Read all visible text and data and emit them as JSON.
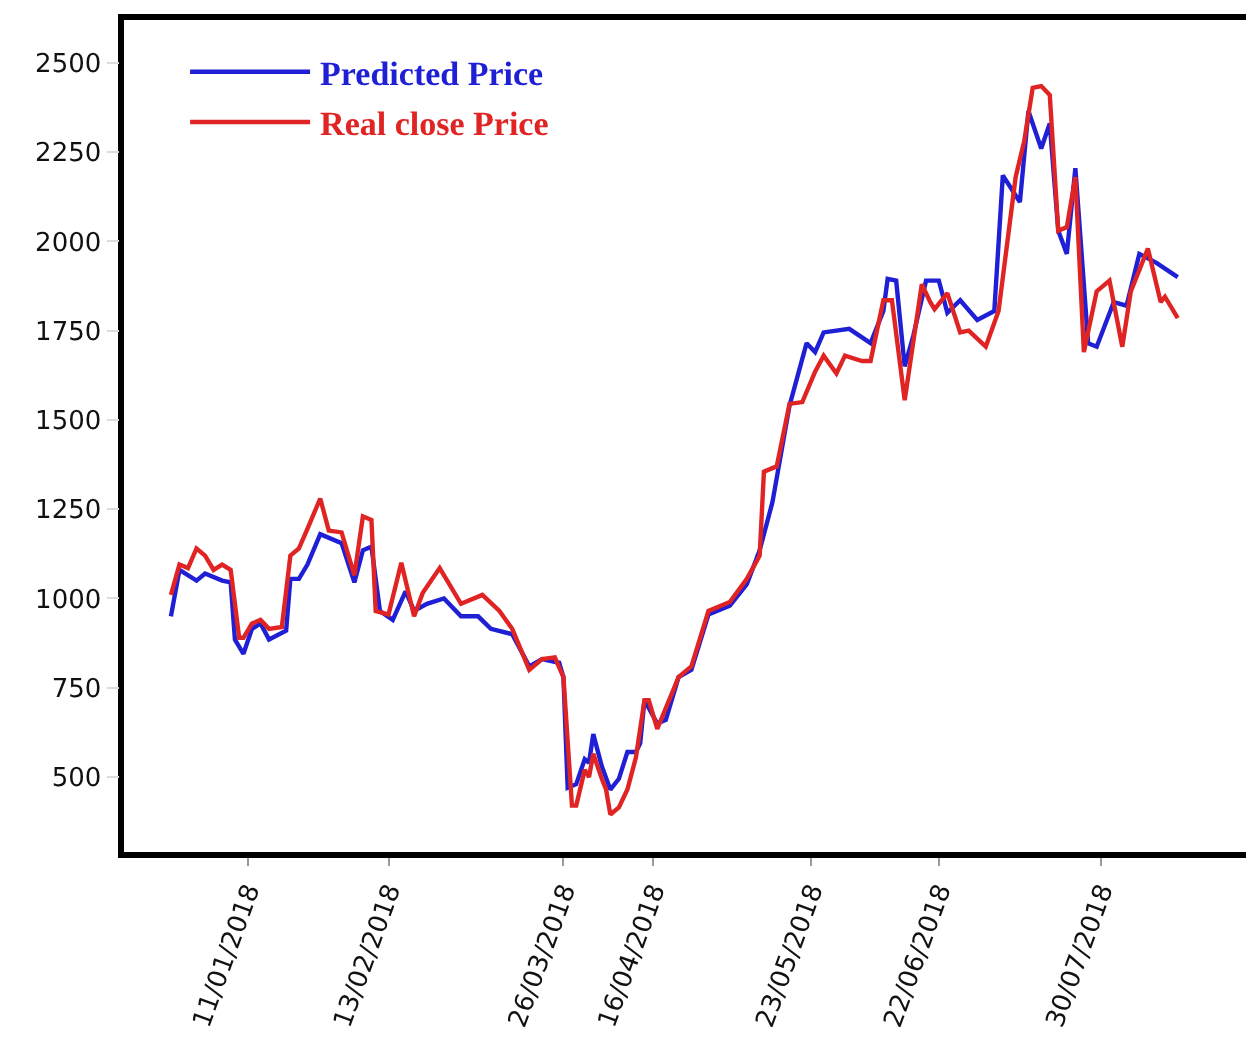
{
  "chart_data": {
    "type": "line",
    "legend": "top left",
    "grid": false,
    "marker": "none",
    "line_style": "solid",
    "xlim": [
      "2017-12-13",
      "2018-09-02"
    ],
    "ylim": [
      290,
      2620
    ],
    "xticks": [
      {
        "value": "2018-01-11",
        "label": "11/01/2018"
      },
      {
        "value": "2018-02-13",
        "label": "13/02/2018"
      },
      {
        "value": "2018-03-26",
        "label": "26/03/2018"
      },
      {
        "value": "2018-04-16",
        "label": "16/04/2018"
      },
      {
        "value": "2018-05-23",
        "label": "23/05/2018"
      },
      {
        "value": "2018-06-22",
        "label": "22/06/2018"
      },
      {
        "value": "2018-07-30",
        "label": "30/07/2018"
      }
    ],
    "yticks": [
      500,
      750,
      1000,
      1250,
      1500,
      1750,
      2000,
      2250,
      2500
    ],
    "series": [
      {
        "name": "Predicted Price",
        "color": "#1f1fd6",
        "x": [
          "2017-12-24",
          "2017-12-26",
          "2017-12-30",
          "2018-01-01",
          "2018-01-05",
          "2018-01-07",
          "2018-01-08",
          "2018-01-10",
          "2018-01-12",
          "2018-01-14",
          "2018-01-16",
          "2018-01-20",
          "2018-01-21",
          "2018-01-23",
          "2018-01-25",
          "2018-01-28",
          "2018-02-02",
          "2018-02-05",
          "2018-02-07",
          "2018-02-09",
          "2018-02-11",
          "2018-02-14",
          "2018-02-17",
          "2018-02-19",
          "2018-02-22",
          "2018-02-26",
          "2018-03-02",
          "2018-03-06",
          "2018-03-09",
          "2018-03-14",
          "2018-03-18",
          "2018-03-21",
          "2018-03-25",
          "2018-03-26",
          "2018-03-27",
          "2018-03-29",
          "2018-03-31",
          "2018-04-01",
          "2018-04-02",
          "2018-04-04",
          "2018-04-06",
          "2018-04-08",
          "2018-04-10",
          "2018-04-12",
          "2018-04-13",
          "2018-04-14",
          "2018-04-17",
          "2018-04-19",
          "2018-04-22",
          "2018-04-25",
          "2018-04-29",
          "2018-05-04",
          "2018-05-08",
          "2018-05-11",
          "2018-05-14",
          "2018-05-18",
          "2018-05-22",
          "2018-05-24",
          "2018-05-26",
          "2018-06-01",
          "2018-06-06",
          "2018-06-09",
          "2018-06-10",
          "2018-06-12",
          "2018-06-14",
          "2018-06-16",
          "2018-06-19",
          "2018-06-22",
          "2018-06-24",
          "2018-06-27",
          "2018-07-01",
          "2018-07-05",
          "2018-07-07",
          "2018-07-11",
          "2018-07-13",
          "2018-07-16",
          "2018-07-18",
          "2018-07-20",
          "2018-07-22",
          "2018-07-24",
          "2018-07-27",
          "2018-07-29",
          "2018-08-02",
          "2018-08-05",
          "2018-08-08",
          "2018-08-12",
          "2018-08-17"
        ],
        "values": [
          950,
          1080,
          1050,
          1070,
          1050,
          1045,
          885,
          845,
          915,
          930,
          885,
          910,
          1055,
          1055,
          1095,
          1180,
          1155,
          1045,
          1135,
          1145,
          965,
          940,
          1020,
          965,
          985,
          1000,
          950,
          950,
          915,
          900,
          810,
          830,
          820,
          780,
          470,
          480,
          550,
          540,
          620,
          530,
          465,
          495,
          570,
          570,
          595,
          715,
          650,
          660,
          780,
          800,
          955,
          980,
          1040,
          1135,
          1270,
          1540,
          1715,
          1690,
          1745,
          1755,
          1715,
          1805,
          1895,
          1890,
          1650,
          1735,
          1890,
          1890,
          1800,
          1835,
          1780,
          1805,
          2185,
          2110,
          2365,
          2260,
          2330,
          2030,
          1965,
          2205,
          1715,
          1705,
          1830,
          1820,
          1965,
          1940,
          1900
        ]
      },
      {
        "name": "Real close Price",
        "color": "#e02424",
        "x": [
          "2017-12-24",
          "2017-12-26",
          "2017-12-28",
          "2017-12-30",
          "2018-01-01",
          "2018-01-03",
          "2018-01-05",
          "2018-01-07",
          "2018-01-09",
          "2018-01-10",
          "2018-01-12",
          "2018-01-14",
          "2018-01-16",
          "2018-01-19",
          "2018-01-21",
          "2018-01-23",
          "2018-01-25",
          "2018-01-28",
          "2018-01-30",
          "2018-02-02",
          "2018-02-05",
          "2018-02-07",
          "2018-02-09",
          "2018-02-10",
          "2018-02-13",
          "2018-02-16",
          "2018-02-19",
          "2018-02-21",
          "2018-02-25",
          "2018-03-02",
          "2018-03-07",
          "2018-03-11",
          "2018-03-14",
          "2018-03-18",
          "2018-03-21",
          "2018-03-24",
          "2018-03-26",
          "2018-03-28",
          "2018-03-29",
          "2018-03-31",
          "2018-04-01",
          "2018-04-02",
          "2018-04-04",
          "2018-04-05",
          "2018-04-06",
          "2018-04-08",
          "2018-04-10",
          "2018-04-12",
          "2018-04-14",
          "2018-04-15",
          "2018-04-17",
          "2018-04-22",
          "2018-04-25",
          "2018-04-29",
          "2018-05-04",
          "2018-05-08",
          "2018-05-11",
          "2018-05-12",
          "2018-05-15",
          "2018-05-18",
          "2018-05-21",
          "2018-05-24",
          "2018-05-26",
          "2018-05-29",
          "2018-05-31",
          "2018-06-04",
          "2018-06-06",
          "2018-06-09",
          "2018-06-11",
          "2018-06-14",
          "2018-06-18",
          "2018-06-20",
          "2018-06-21",
          "2018-06-24",
          "2018-06-27",
          "2018-06-29",
          "2018-07-03",
          "2018-07-06",
          "2018-07-10",
          "2018-07-12",
          "2018-07-14",
          "2018-07-16",
          "2018-07-18",
          "2018-07-20",
          "2018-07-22",
          "2018-07-24",
          "2018-07-26",
          "2018-07-29",
          "2018-08-01",
          "2018-08-04",
          "2018-08-06",
          "2018-08-10",
          "2018-08-13",
          "2018-08-14",
          "2018-08-17"
        ],
        "values": [
          1010,
          1095,
          1085,
          1140,
          1120,
          1080,
          1095,
          1080,
          890,
          890,
          930,
          940,
          915,
          920,
          1120,
          1140,
          1195,
          1280,
          1190,
          1185,
          1065,
          1230,
          1220,
          965,
          955,
          1100,
          950,
          1015,
          1085,
          985,
          1010,
          965,
          915,
          800,
          830,
          835,
          780,
          420,
          420,
          520,
          500,
          565,
          495,
          465,
          395,
          415,
          465,
          555,
          715,
          715,
          635,
          780,
          810,
          965,
          990,
          1055,
          1120,
          1355,
          1370,
          1545,
          1550,
          1635,
          1680,
          1630,
          1680,
          1665,
          1665,
          1835,
          1835,
          1555,
          1880,
          1830,
          1810,
          1855,
          1745,
          1750,
          1705,
          1805,
          2180,
          2280,
          2430,
          2435,
          2410,
          2030,
          2040,
          2180,
          1690,
          1860,
          1890,
          1705,
          1860,
          1980,
          1830,
          1845,
          1785
        ]
      }
    ]
  }
}
